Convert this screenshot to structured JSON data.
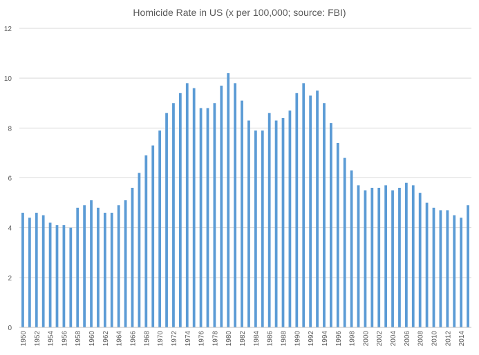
{
  "chart_data": {
    "type": "bar",
    "title": "Homicide Rate in US (x per 100,000; source: FBI)",
    "xlabel": "",
    "ylabel": "",
    "ylim": [
      0,
      12
    ],
    "yticks": [
      0,
      2,
      4,
      6,
      8,
      10,
      12
    ],
    "grid": true,
    "legend": "none",
    "bar_color": "#5b9bd5",
    "categories": [
      "1950",
      "1951",
      "1952",
      "1953",
      "1954",
      "1955",
      "1956",
      "1957",
      "1958",
      "1959",
      "1960",
      "1961",
      "1962",
      "1963",
      "1964",
      "1965",
      "1966",
      "1967",
      "1968",
      "1969",
      "1970",
      "1971",
      "1972",
      "1973",
      "1974",
      "1975",
      "1976",
      "1977",
      "1978",
      "1979",
      "1980",
      "1981",
      "1982",
      "1983",
      "1984",
      "1985",
      "1986",
      "1987",
      "1988",
      "1989",
      "1990",
      "1991",
      "1992",
      "1993",
      "1994",
      "1995",
      "1996",
      "1997",
      "1998",
      "1999",
      "2000",
      "2001",
      "2002",
      "2003",
      "2004",
      "2005",
      "2006",
      "2007",
      "2008",
      "2009",
      "2010",
      "2011",
      "2012",
      "2013",
      "2014",
      "2015"
    ],
    "x_tick_labels": [
      "1950",
      "1952",
      "1954",
      "1956",
      "1958",
      "1960",
      "1962",
      "1964",
      "1966",
      "1968",
      "1970",
      "1972",
      "1974",
      "1976",
      "1978",
      "1980",
      "1982",
      "1984",
      "1986",
      "1988",
      "1990",
      "1992",
      "1994",
      "1996",
      "1998",
      "2000",
      "2002",
      "2004",
      "2006",
      "2008",
      "2010",
      "2012",
      "2014"
    ],
    "values": [
      4.6,
      4.4,
      4.6,
      4.5,
      4.2,
      4.1,
      4.1,
      4.0,
      4.8,
      4.9,
      5.1,
      4.8,
      4.6,
      4.6,
      4.9,
      5.1,
      5.6,
      6.2,
      6.9,
      7.3,
      7.9,
      8.6,
      9.0,
      9.4,
      9.8,
      9.6,
      8.8,
      8.8,
      9.0,
      9.7,
      10.2,
      9.8,
      9.1,
      8.3,
      7.9,
      7.9,
      8.6,
      8.3,
      8.4,
      8.7,
      9.4,
      9.8,
      9.3,
      9.5,
      9.0,
      8.2,
      7.4,
      6.8,
      6.3,
      5.7,
      5.5,
      5.6,
      5.6,
      5.7,
      5.5,
      5.6,
      5.8,
      5.7,
      5.4,
      5.0,
      4.8,
      4.7,
      4.7,
      4.5,
      4.4,
      4.9
    ]
  }
}
